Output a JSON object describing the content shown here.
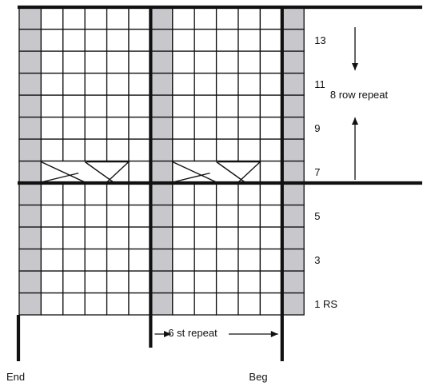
{
  "chart_data": {
    "type": "knitting-chart",
    "columns": 13,
    "rows": 14,
    "purl_columns": [
      1,
      7,
      13
    ],
    "cable_row": 7,
    "cables": [
      {
        "start_col": 2,
        "end_col": 5
      },
      {
        "start_col": 8,
        "end_col": 11
      }
    ],
    "row_labels": [
      {
        "row": 13,
        "text": "13"
      },
      {
        "row": 11,
        "text": "11"
      },
      {
        "row": 9,
        "text": "9"
      },
      {
        "row": 7,
        "text": "7"
      },
      {
        "row": 5,
        "text": "5"
      },
      {
        "row": 3,
        "text": "3"
      },
      {
        "row": 1,
        "text": "1 RS"
      }
    ],
    "repeats": {
      "row_repeat": {
        "text": "8 row repeat"
      },
      "stitch_repeat": {
        "text": "6 st repeat"
      }
    },
    "markers": {
      "end": "End",
      "beg": "Beg"
    },
    "colors": {
      "purl": "#c8c8cc",
      "grid": "#111111",
      "background": "#ffffff"
    }
  }
}
